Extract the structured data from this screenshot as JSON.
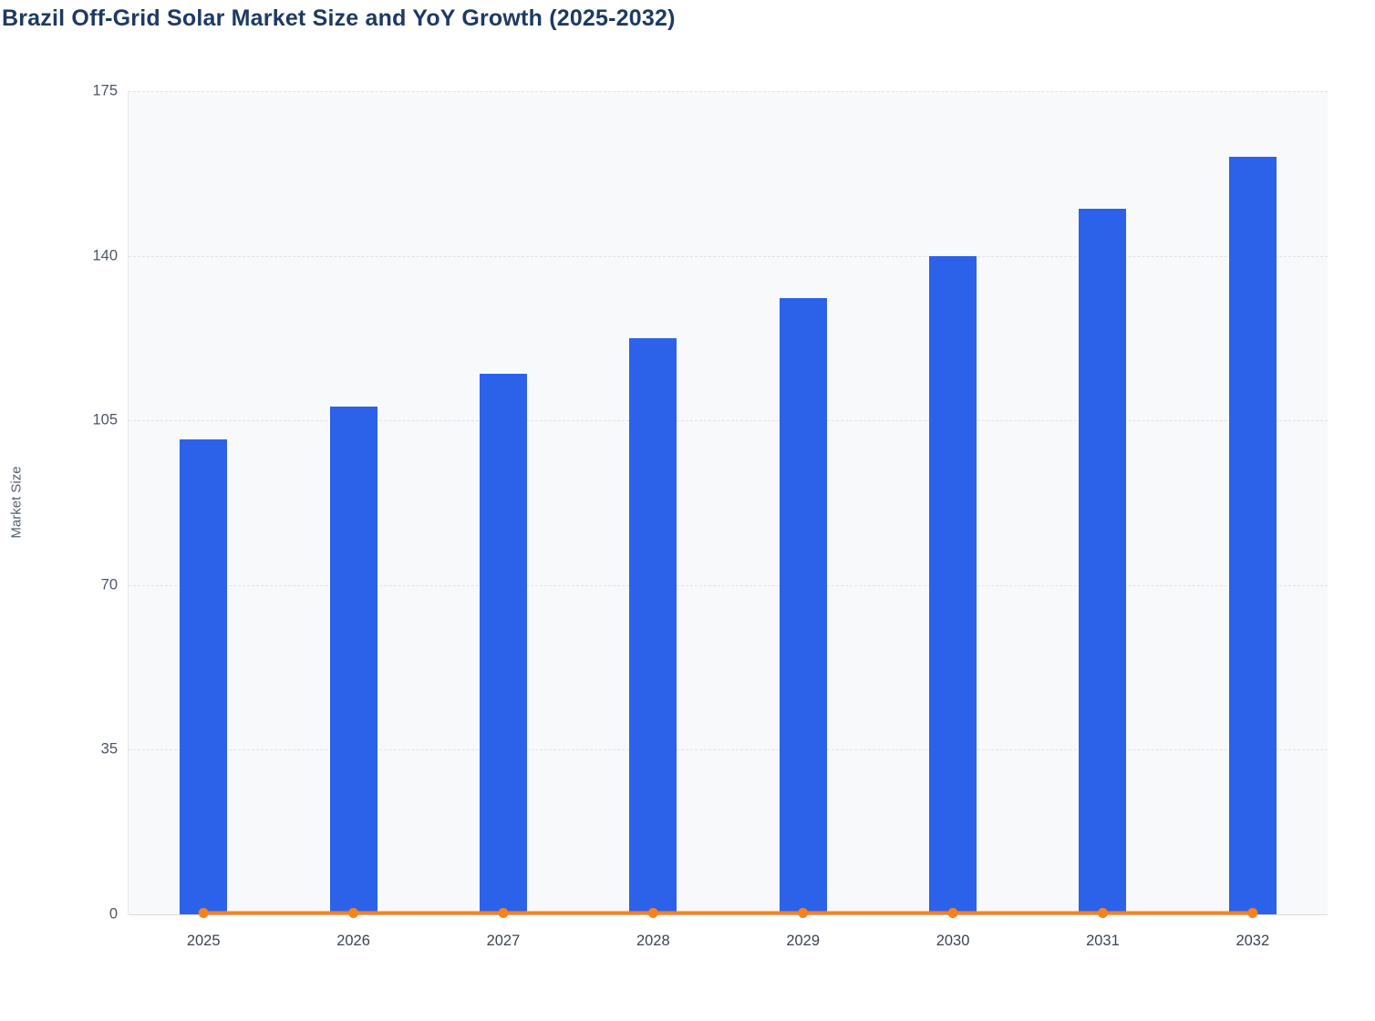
{
  "chart_data": {
    "type": "bar",
    "title": "Brazil Off-Grid Solar Market Size and YoY Growth (2025-2032)",
    "xlabel": "",
    "ylabel": "Market Size",
    "categories": [
      "2025",
      "2026",
      "2027",
      "2028",
      "2029",
      "2030",
      "2031",
      "2032"
    ],
    "series": [
      {
        "name": "Market Size",
        "kind": "bar",
        "color": "#2b62e9",
        "values": [
          101,
          108,
          115,
          122.5,
          131,
          140,
          150,
          161
        ]
      },
      {
        "name": "YoY Growth",
        "kind": "line",
        "color": "#f7821b",
        "values": [
          0.3,
          0.3,
          0.3,
          0.3,
          0.3,
          0.3,
          0.3,
          0.3
        ]
      }
    ],
    "ylim": [
      0,
      175
    ],
    "yticks": [
      0,
      35,
      70,
      105,
      140,
      175
    ],
    "grid": "horizontal-dashed",
    "legend": "none",
    "plot_background": "#f8f9fb"
  }
}
